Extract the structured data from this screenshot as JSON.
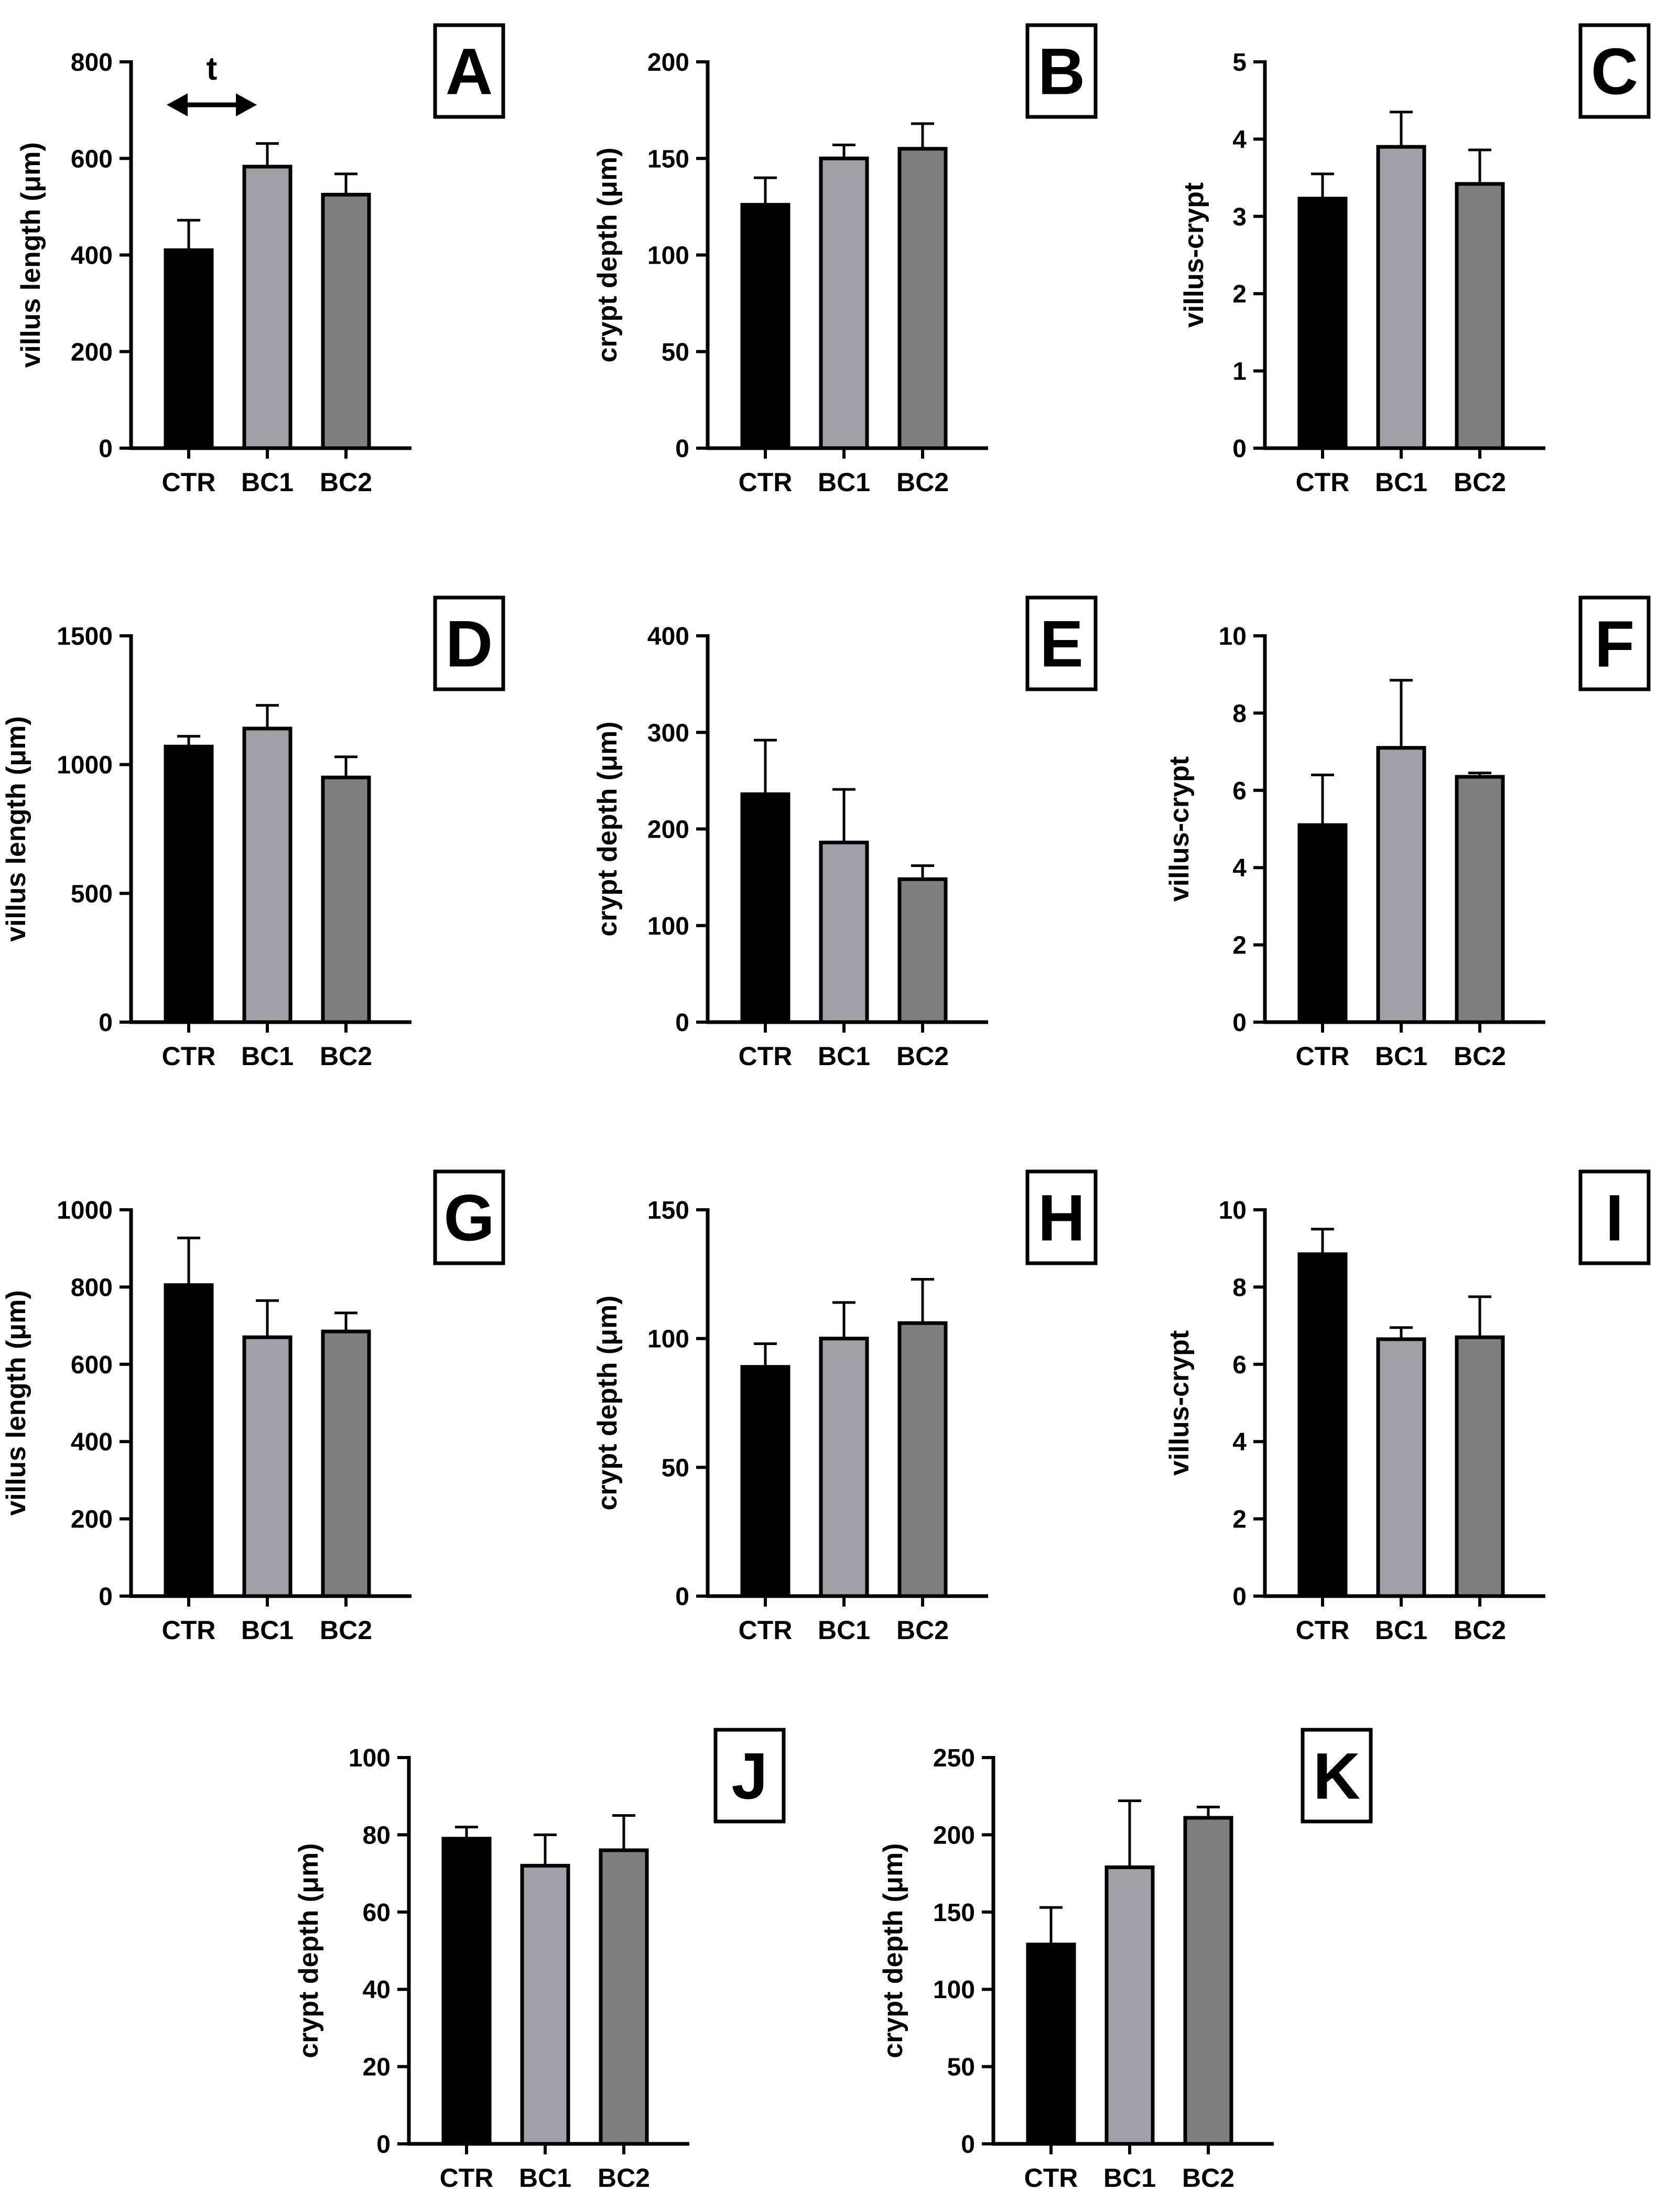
{
  "figure": {
    "bar_colors": [
      "#000000",
      "#a1a1a5",
      "#7f7f7f"
    ],
    "edge_color": "#000000"
  },
  "chart_data": [
    {
      "panel": "A",
      "type": "bar",
      "categories": [
        "CTR",
        "BC1",
        "BC2"
      ],
      "values": [
        410,
        583,
        525
      ],
      "errors": [
        62,
        48,
        43
      ],
      "ylabel": "villus length (μm)",
      "ylim": [
        0,
        800
      ],
      "yticks": [
        0,
        200,
        400,
        600,
        800
      ],
      "annotation": "t"
    },
    {
      "panel": "B",
      "type": "bar",
      "categories": [
        "CTR",
        "BC1",
        "BC2"
      ],
      "values": [
        126,
        150,
        155
      ],
      "errors": [
        14,
        7,
        13
      ],
      "ylabel": "crypt depth (μm)",
      "ylim": [
        0,
        200
      ],
      "yticks": [
        0,
        50,
        100,
        150,
        200
      ]
    },
    {
      "panel": "C",
      "type": "bar",
      "categories": [
        "CTR",
        "BC1",
        "BC2"
      ],
      "values": [
        3.23,
        3.9,
        3.42
      ],
      "errors": [
        0.32,
        0.45,
        0.44
      ],
      "ylabel": "villus-crypt",
      "ylim": [
        0,
        5
      ],
      "yticks": [
        0,
        1,
        2,
        3,
        4,
        5
      ]
    },
    {
      "panel": "D",
      "type": "bar",
      "categories": [
        "CTR",
        "BC1",
        "BC2"
      ],
      "values": [
        1070,
        1140,
        950
      ],
      "errors": [
        40,
        90,
        80
      ],
      "ylabel": "villus length (μm)",
      "ylim": [
        0,
        1500
      ],
      "yticks": [
        0,
        500,
        1000,
        1500
      ]
    },
    {
      "panel": "E",
      "type": "bar",
      "categories": [
        "CTR",
        "BC1",
        "BC2"
      ],
      "values": [
        236,
        186,
        148
      ],
      "errors": [
        56,
        55,
        14
      ],
      "ylabel": "crypt depth (μm)",
      "ylim": [
        0,
        400
      ],
      "yticks": [
        0,
        100,
        200,
        300,
        400
      ]
    },
    {
      "panel": "F",
      "type": "bar",
      "categories": [
        "CTR",
        "BC1",
        "BC2"
      ],
      "values": [
        5.1,
        7.1,
        6.35
      ],
      "errors": [
        1.3,
        1.75,
        0.1
      ],
      "ylabel": "villus-crypt",
      "ylim": [
        0,
        10
      ],
      "yticks": [
        0,
        2,
        4,
        6,
        8,
        10
      ]
    },
    {
      "panel": "G",
      "type": "bar",
      "categories": [
        "CTR",
        "BC1",
        "BC2"
      ],
      "values": [
        805,
        670,
        685
      ],
      "errors": [
        122,
        95,
        48
      ],
      "ylabel": "villus length (μm)",
      "ylim": [
        0,
        1000
      ],
      "yticks": [
        0,
        200,
        400,
        600,
        800,
        1000
      ]
    },
    {
      "panel": "H",
      "type": "bar",
      "categories": [
        "CTR",
        "BC1",
        "BC2"
      ],
      "values": [
        89,
        100,
        106
      ],
      "errors": [
        9,
        14,
        17
      ],
      "ylabel": "crypt depth (μm)",
      "ylim": [
        0,
        150
      ],
      "yticks": [
        0,
        50,
        100,
        150
      ]
    },
    {
      "panel": "I",
      "type": "bar",
      "categories": [
        "CTR",
        "BC1",
        "BC2"
      ],
      "values": [
        8.85,
        6.65,
        6.7
      ],
      "errors": [
        0.65,
        0.3,
        1.05
      ],
      "ylabel": "villus-crypt",
      "ylim": [
        0,
        10
      ],
      "yticks": [
        0,
        2,
        4,
        6,
        8,
        10
      ]
    },
    {
      "panel": "J",
      "type": "bar",
      "categories": [
        "CTR",
        "BC1",
        "BC2"
      ],
      "values": [
        79,
        72,
        76
      ],
      "errors": [
        3,
        8,
        9
      ],
      "ylabel": "crypt depth (μm)",
      "ylim": [
        0,
        100
      ],
      "yticks": [
        0,
        20,
        40,
        60,
        80,
        100
      ]
    },
    {
      "panel": "K",
      "type": "bar",
      "categories": [
        "CTR",
        "BC1",
        "BC2"
      ],
      "values": [
        129,
        179,
        211
      ],
      "errors": [
        24,
        43,
        7
      ],
      "ylabel": "crypt depth (μm)",
      "ylim": [
        0,
        250
      ],
      "yticks": [
        0,
        50,
        100,
        150,
        200,
        250
      ]
    }
  ]
}
